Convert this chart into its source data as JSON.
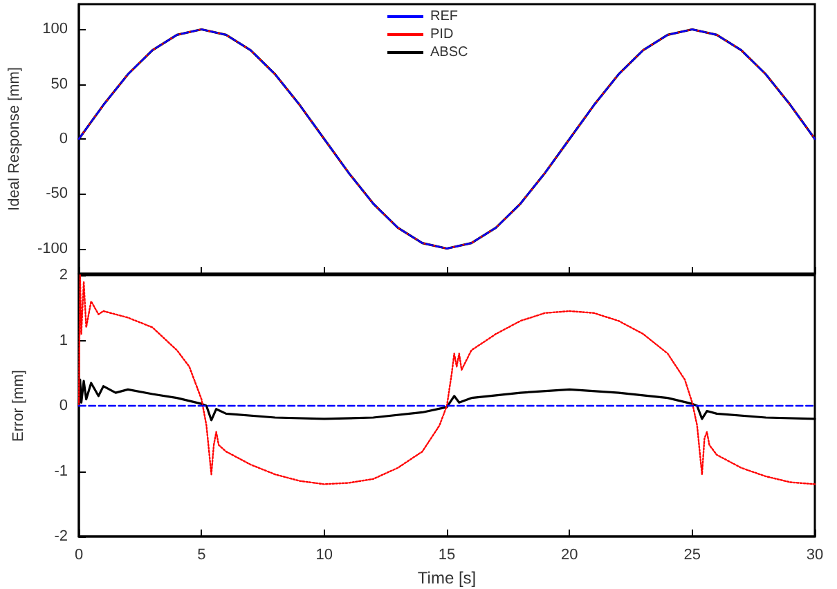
{
  "chart_data": [
    {
      "type": "line",
      "ylabel": "Ideal Response [mm]",
      "xlim": [
        0,
        30
      ],
      "xticks": [
        0,
        5,
        10,
        15,
        20,
        25,
        30
      ],
      "ylim": [
        -123,
        123
      ],
      "yticks": [
        -100,
        -50,
        0,
        50,
        100
      ],
      "tick_labels": "y",
      "legend": "top",
      "grid": false,
      "marker": "none",
      "series": [
        {
          "name": "REF",
          "color": "#0000ff",
          "line_style": "dashed",
          "x": [
            0,
            1,
            2,
            3,
            4,
            5,
            6,
            7,
            8,
            9,
            10,
            11,
            12,
            13,
            14,
            15,
            16,
            17,
            18,
            19,
            20,
            21,
            22,
            23,
            24,
            25,
            26,
            27,
            28,
            29,
            30
          ],
          "values": [
            0,
            31,
            59,
            81,
            95,
            100,
            95,
            81,
            59,
            31,
            0,
            -31,
            -59,
            -81,
            -95,
            -100,
            -95,
            -81,
            -59,
            -31,
            0,
            31,
            59,
            81,
            95,
            100,
            95,
            81,
            59,
            31,
            0
          ]
        },
        {
          "name": "PID",
          "color": "#ff0000",
          "line_style": "dotted",
          "x": [
            0,
            1,
            2,
            3,
            4,
            5,
            6,
            7,
            8,
            9,
            10,
            11,
            12,
            13,
            14,
            15,
            16,
            17,
            18,
            19,
            20,
            21,
            22,
            23,
            24,
            25,
            26,
            27,
            28,
            29,
            30
          ],
          "values": [
            0,
            31,
            59,
            81,
            95,
            100,
            95,
            81,
            59,
            31,
            0,
            -31,
            -59,
            -81,
            -95,
            -100,
            -95,
            -81,
            -59,
            -31,
            0,
            31,
            59,
            81,
            95,
            100,
            95,
            81,
            59,
            31,
            0
          ]
        },
        {
          "name": "ABSC",
          "color": "#000000",
          "line_style": "solid",
          "x": [
            0,
            1,
            2,
            3,
            4,
            5,
            6,
            7,
            8,
            9,
            10,
            11,
            12,
            13,
            14,
            15,
            16,
            17,
            18,
            19,
            20,
            21,
            22,
            23,
            24,
            25,
            26,
            27,
            28,
            29,
            30
          ],
          "values": [
            0,
            31,
            59,
            81,
            95,
            100,
            95,
            81,
            59,
            31,
            0,
            -31,
            -59,
            -81,
            -95,
            -100,
            -95,
            -81,
            -59,
            -31,
            0,
            31,
            59,
            81,
            95,
            100,
            95,
            81,
            59,
            31,
            0
          ]
        }
      ]
    },
    {
      "type": "line",
      "xlabel": "Time [s]",
      "ylabel": "Error [mm]",
      "xlim": [
        0,
        30
      ],
      "xticks": [
        0,
        5,
        10,
        15,
        20,
        25,
        30
      ],
      "ylim": [
        -2,
        2
      ],
      "yticks": [
        -2,
        -1,
        0,
        1,
        2
      ],
      "legend": false,
      "grid": false,
      "marker": "none",
      "series": [
        {
          "color": "#0000ff",
          "line_style": "dashed",
          "x": [
            0,
            30
          ],
          "values": [
            0,
            0
          ]
        },
        {
          "color": "#ff0000",
          "line_style": "dotted",
          "x": [
            0,
            0.05,
            0.1,
            0.2,
            0.3,
            0.5,
            0.8,
            1,
            2,
            3,
            4,
            4.5,
            5,
            5.2,
            5.4,
            5.5,
            5.6,
            5.7,
            6,
            7,
            8,
            9,
            10,
            11,
            12,
            13,
            14,
            14.7,
            15,
            15.2,
            15.3,
            15.4,
            15.5,
            15.6,
            16,
            17,
            18,
            19,
            20,
            21,
            22,
            23,
            24,
            24.7,
            25,
            25.2,
            25.4,
            25.5,
            25.6,
            25.7,
            26,
            27,
            28,
            29,
            30
          ],
          "values": [
            0,
            2.0,
            1.1,
            1.9,
            1.2,
            1.6,
            1.4,
            1.45,
            1.35,
            1.2,
            0.85,
            0.6,
            0.1,
            -0.3,
            -1.05,
            -0.6,
            -0.4,
            -0.6,
            -0.7,
            -0.9,
            -1.05,
            -1.15,
            -1.2,
            -1.18,
            -1.12,
            -0.95,
            -0.7,
            -0.3,
            0,
            0.5,
            0.8,
            0.6,
            0.8,
            0.55,
            0.85,
            1.1,
            1.3,
            1.42,
            1.45,
            1.42,
            1.3,
            1.1,
            0.8,
            0.4,
            0.05,
            -0.3,
            -1.05,
            -0.5,
            -0.4,
            -0.6,
            -0.75,
            -0.95,
            -1.08,
            -1.17,
            -1.2
          ]
        },
        {
          "color": "#000000",
          "line_style": "solid",
          "x": [
            0,
            0.05,
            0.1,
            0.2,
            0.3,
            0.5,
            0.8,
            1,
            1.5,
            2,
            3,
            4,
            5,
            5.2,
            5.4,
            5.6,
            6,
            8,
            10,
            12,
            14,
            15,
            15.3,
            15.5,
            16,
            18,
            20,
            22,
            24,
            25,
            25.2,
            25.4,
            25.6,
            26,
            28,
            30
          ],
          "values": [
            0,
            0.4,
            0.05,
            0.38,
            0.1,
            0.35,
            0.15,
            0.3,
            0.2,
            0.25,
            0.18,
            0.12,
            0.03,
            0,
            -0.22,
            -0.05,
            -0.12,
            -0.18,
            -0.2,
            -0.18,
            -0.1,
            -0.02,
            0.15,
            0.05,
            0.12,
            0.2,
            0.25,
            0.2,
            0.12,
            0.03,
            0,
            -0.2,
            -0.08,
            -0.12,
            -0.18,
            -0.2
          ]
        }
      ]
    }
  ]
}
